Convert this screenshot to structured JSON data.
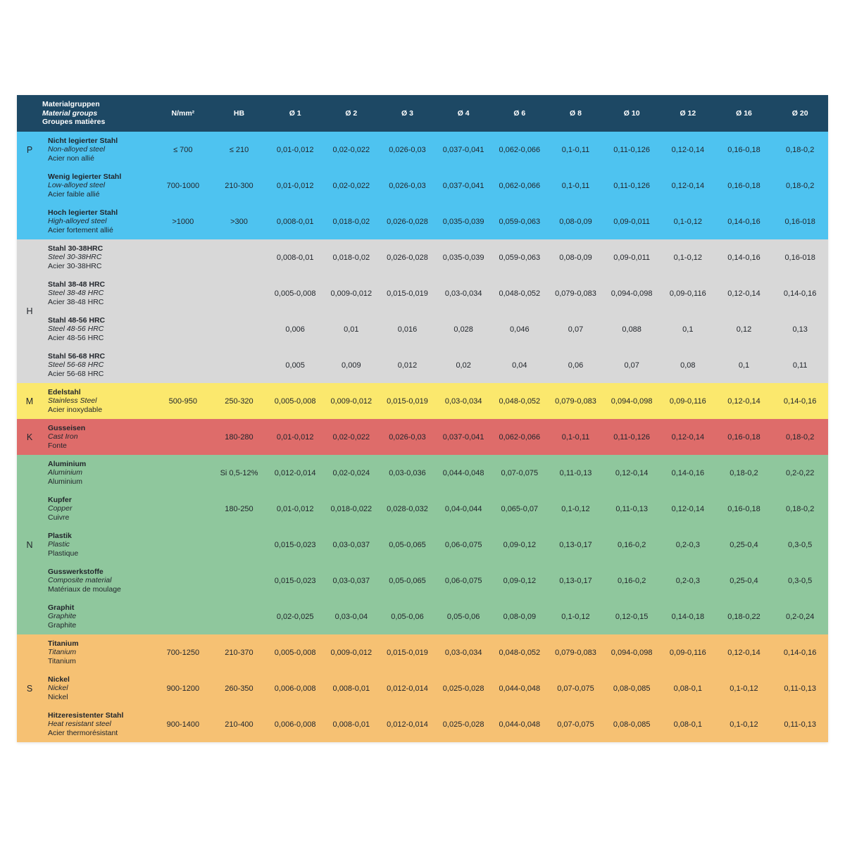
{
  "colors": {
    "header_bg": "#1d4864",
    "header_text": "#ffffff",
    "body_text": "#22262c",
    "section_P": "#4ec3f0",
    "section_H": "#d8d8d8",
    "section_M": "#fbe86d",
    "section_K": "#de6c6a",
    "section_N": "#8fc79d",
    "section_S": "#f6c173"
  },
  "header": {
    "material_col": [
      "Materialgruppen",
      "Material groups",
      "Groupes matières"
    ],
    "columns": [
      "N/mm²",
      "HB",
      "Ø 1",
      "Ø 2",
      "Ø 3",
      "Ø 4",
      "Ø 6",
      "Ø 8",
      "Ø 10",
      "Ø 12",
      "Ø 16",
      "Ø 20"
    ]
  },
  "sections": [
    {
      "letter": "P",
      "color": "#4ec3f0",
      "letter_align": "first-row",
      "rows": [
        {
          "names": [
            "Nicht legierter Stahl",
            "Non-alloyed steel",
            "Acier non allié"
          ],
          "values": [
            "≤ 700",
            "≤ 210",
            "0,01-0,012",
            "0,02-0,022",
            "0,026-0,03",
            "0,037-0,041",
            "0,062-0,066",
            "0,1-0,11",
            "0,11-0,126",
            "0,12-0,14",
            "0,16-0,18",
            "0,18-0,2"
          ]
        },
        {
          "names": [
            "Wenig legierter Stahl",
            "Low-alloyed steel",
            "Acier faible allié"
          ],
          "values": [
            "700-1000",
            "210-300",
            "0,01-0,012",
            "0,02-0,022",
            "0,026-0,03",
            "0,037-0,041",
            "0,062-0,066",
            "0,1-0,11",
            "0,11-0,126",
            "0,12-0,14",
            "0,16-0,18",
            "0,18-0,2"
          ]
        },
        {
          "names": [
            "Hoch legierter Stahl",
            "High-alloyed steel",
            "Acier fortement allié"
          ],
          "values": [
            ">1000",
            ">300",
            "0,008-0,01",
            "0,018-0,02",
            "0,026-0,028",
            "0,035-0,039",
            "0,059-0,063",
            "0,08-0,09",
            "0,09-0,011",
            "0,1-0,12",
            "0,14-0,16",
            "0,16-018"
          ]
        }
      ]
    },
    {
      "letter": "H",
      "color": "#d8d8d8",
      "letter_align": "center",
      "rows": [
        {
          "names": [
            "Stahl 30-38HRC",
            "Steel 30-38HRC",
            "Acier 30-38HRC"
          ],
          "values": [
            "",
            "",
            "0,008-0,01",
            "0,018-0,02",
            "0,026-0,028",
            "0,035-0,039",
            "0,059-0,063",
            "0,08-0,09",
            "0,09-0,011",
            "0,1-0,12",
            "0,14-0,16",
            "0,16-018"
          ]
        },
        {
          "names": [
            "Stahl 38-48 HRC",
            "Steel 38-48 HRC",
            "Acier 38-48 HRC"
          ],
          "values": [
            "",
            "",
            "0,005-0,008",
            "0,009-0,012",
            "0,015-0,019",
            "0,03-0,034",
            "0,048-0,052",
            "0,079-0,083",
            "0,094-0,098",
            "0,09-0,116",
            "0,12-0,14",
            "0,14-0,16"
          ]
        },
        {
          "names": [
            "Stahl 48-56 HRC",
            "Steel 48-56 HRC",
            "Acier 48-56 HRC"
          ],
          "values": [
            "",
            "",
            "0,006",
            "0,01",
            "0,016",
            "0,028",
            "0,046",
            "0,07",
            "0,088",
            "0,1",
            "0,12",
            "0,13"
          ]
        },
        {
          "names": [
            "Stahl 56-68 HRC",
            "Steel 56-68 HRC",
            "Acier 56-68 HRC"
          ],
          "values": [
            "",
            "",
            "0,005",
            "0,009",
            "0,012",
            "0,02",
            "0,04",
            "0,06",
            "0,07",
            "0,08",
            "0,1",
            "0,11"
          ]
        }
      ]
    },
    {
      "letter": "M",
      "color": "#fbe86d",
      "letter_align": "center",
      "rows": [
        {
          "names": [
            "Edelstahl",
            "Stainless Steel",
            "Acier inoxydable"
          ],
          "values": [
            "500-950",
            "250-320",
            "0,005-0,008",
            "0,009-0,012",
            "0,015-0,019",
            "0,03-0,034",
            "0,048-0,052",
            "0,079-0,083",
            "0,094-0,098",
            "0,09-0,116",
            "0,12-0,14",
            "0,14-0,16"
          ]
        }
      ]
    },
    {
      "letter": "K",
      "color": "#de6c6a",
      "letter_align": "center",
      "rows": [
        {
          "names": [
            "Gusseisen",
            "Cast Iron",
            "Fonte"
          ],
          "values": [
            "",
            "180-280",
            "0,01-0,012",
            "0,02-0,022",
            "0,026-0,03",
            "0,037-0,041",
            "0,062-0,066",
            "0,1-0,11",
            "0,11-0,126",
            "0,12-0,14",
            "0,16-0,18",
            "0,18-0,2"
          ]
        }
      ]
    },
    {
      "letter": "N",
      "color": "#8fc79d",
      "letter_align": "center",
      "rows": [
        {
          "names": [
            "Aluminium",
            "Aluminium",
            "Aluminium"
          ],
          "values": [
            "",
            "Si 0,5-12%",
            "0,012-0,014",
            "0,02-0,024",
            "0,03-0,036",
            "0,044-0,048",
            "0,07-0,075",
            "0,11-0,13",
            "0,12-0,14",
            "0,14-0,16",
            "0,18-0,2",
            "0,2-0,22"
          ]
        },
        {
          "names": [
            "Kupfer",
            "Copper",
            "Cuivre"
          ],
          "values": [
            "",
            "180-250",
            "0,01-0,012",
            "0,018-0,022",
            "0,028-0,032",
            "0,04-0,044",
            "0,065-0,07",
            "0,1-0,12",
            "0,11-0,13",
            "0,12-0,14",
            "0,16-0,18",
            "0,18-0,2"
          ]
        },
        {
          "names": [
            "Plastik",
            "Plastic",
            "Plastique"
          ],
          "values": [
            "",
            "",
            "0,015-0,023",
            "0,03-0,037",
            "0,05-0,065",
            "0,06-0,075",
            "0,09-0,12",
            "0,13-0,17",
            "0,16-0,2",
            "0,2-0,3",
            "0,25-0,4",
            "0,3-0,5"
          ]
        },
        {
          "names": [
            "Gusswerkstoffe",
            "Composite material",
            "Matériaux de moulage"
          ],
          "values": [
            "",
            "",
            "0,015-0,023",
            "0,03-0,037",
            "0,05-0,065",
            "0,06-0,075",
            "0,09-0,12",
            "0,13-0,17",
            "0,16-0,2",
            "0,2-0,3",
            "0,25-0,4",
            "0,3-0,5"
          ]
        },
        {
          "names": [
            "Graphit",
            "Graphite",
            "Graphite"
          ],
          "values": [
            "",
            "",
            "0,02-0,025",
            "0,03-0,04",
            "0,05-0,06",
            "0,05-0,06",
            "0,08-0,09",
            "0,1-0,12",
            "0,12-0,15",
            "0,14-0,18",
            "0,18-0,22",
            "0,2-0,24"
          ]
        }
      ]
    },
    {
      "letter": "S",
      "color": "#f6c173",
      "letter_align": "center",
      "rows": [
        {
          "names": [
            "Titanium",
            "Titanium",
            "Titanium"
          ],
          "values": [
            "700-1250",
            "210-370",
            "0,005-0,008",
            "0,009-0,012",
            "0,015-0,019",
            "0,03-0,034",
            "0,048-0,052",
            "0,079-0,083",
            "0,094-0,098",
            "0,09-0,116",
            "0,12-0,14",
            "0,14-0,16"
          ]
        },
        {
          "names": [
            "Nickel",
            "Nickel",
            "Nickel"
          ],
          "values": [
            "900-1200",
            "260-350",
            "0,006-0,008",
            "0,008-0,01",
            "0,012-0,014",
            "0,025-0,028",
            "0,044-0,048",
            "0,07-0,075",
            "0,08-0,085",
            "0,08-0,1",
            "0,1-0,12",
            "0,11-0,13"
          ]
        },
        {
          "names": [
            "Hitzeresistenter Stahl",
            "Heat resistant steel",
            "Acier thermorésistant"
          ],
          "values": [
            "900-1400",
            "210-400",
            "0,006-0,008",
            "0,008-0,01",
            "0,012-0,014",
            "0,025-0,028",
            "0,044-0,048",
            "0,07-0,075",
            "0,08-0,085",
            "0,08-0,1",
            "0,1-0,12",
            "0,11-0,13"
          ]
        }
      ]
    }
  ]
}
